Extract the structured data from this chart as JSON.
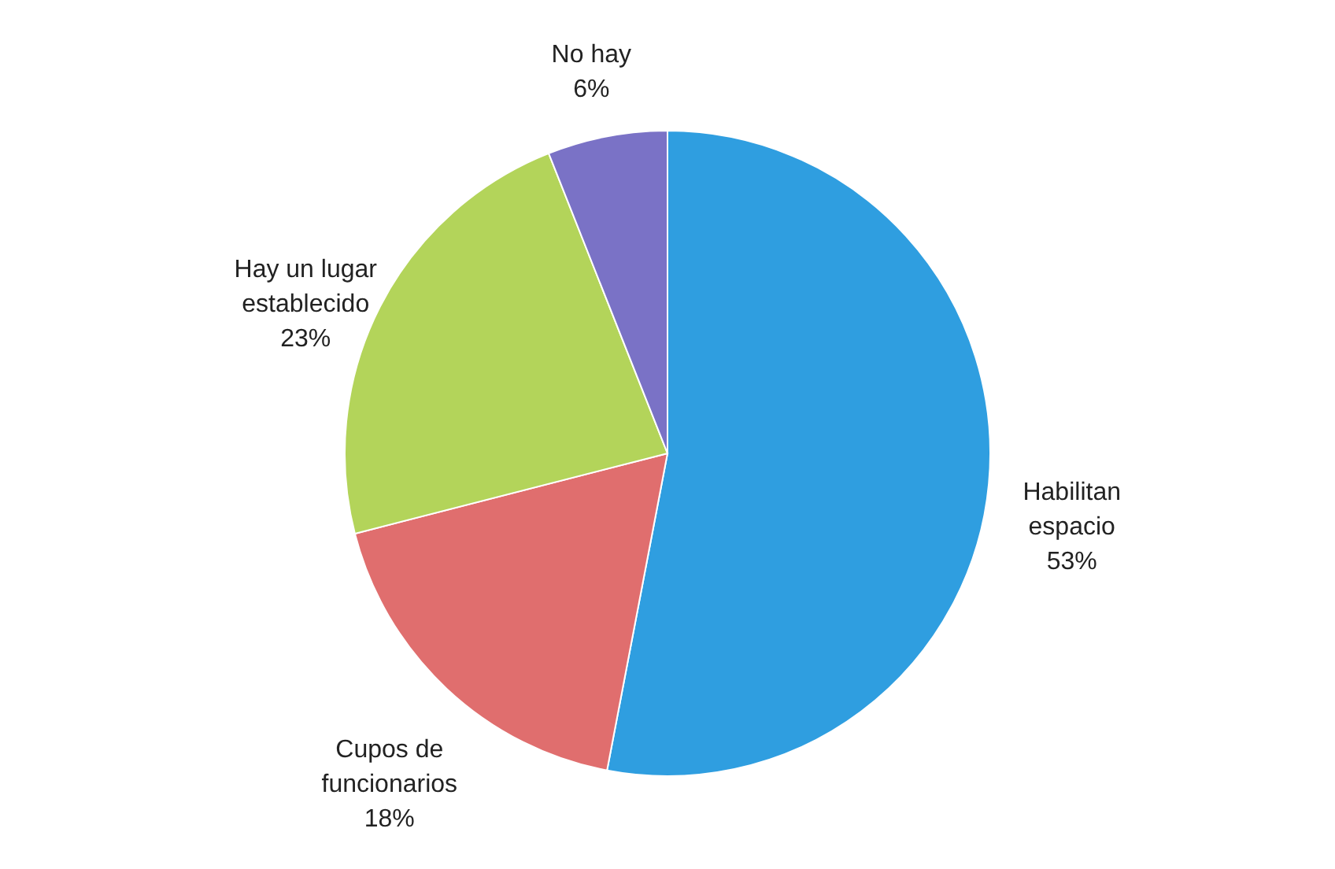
{
  "chart_data": {
    "type": "pie",
    "categories": [
      "Habilitan espacio",
      "Cupos de funcionarios",
      "Hay un lugar establecido",
      "No hay"
    ],
    "values": [
      53,
      18,
      23,
      6
    ],
    "value_labels": [
      "53%",
      "18%",
      "23%",
      "6%"
    ],
    "colors": [
      "#2f9ee0",
      "#e06e6e",
      "#b3d45a",
      "#7a72c6"
    ]
  }
}
